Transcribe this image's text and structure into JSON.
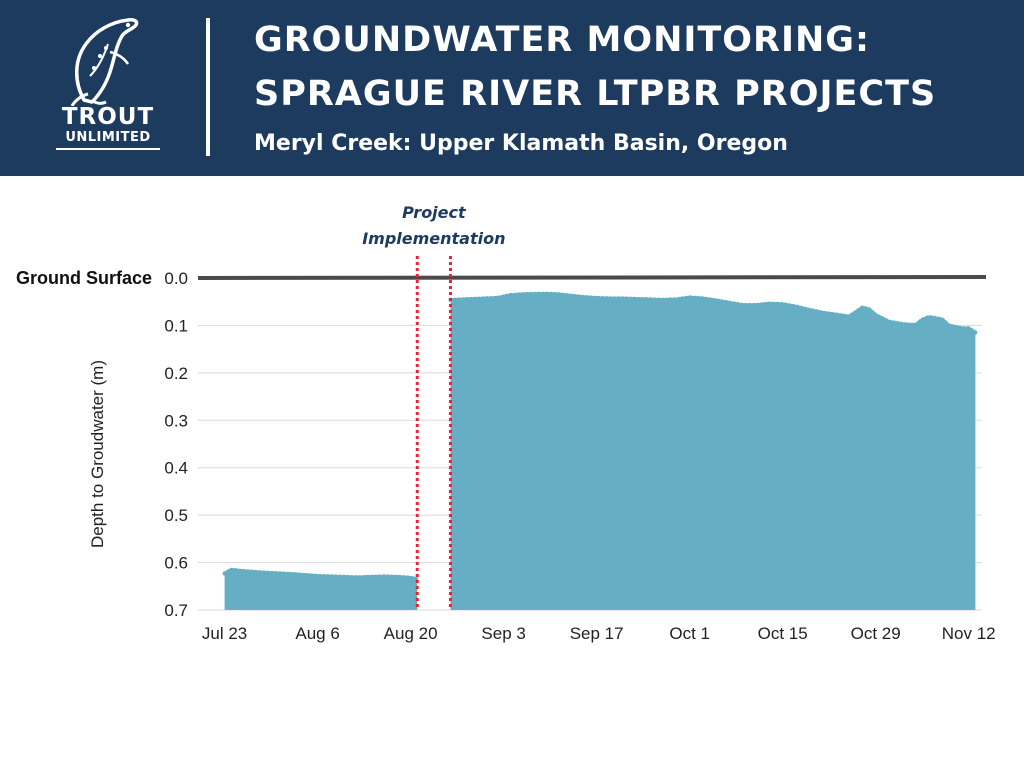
{
  "header": {
    "logo_line1": "TROUT",
    "logo_line2": "UNLIMITED",
    "title_line1": "GROUNDWATER MONITORING:",
    "title_line2": "SPRAGUE RIVER LTPBR PROJECTS",
    "subtitle": "Meryl Creek: Upper Klamath Basin, Oregon"
  },
  "colors": {
    "banner": "#1d3a5f",
    "area_fill": "#65aec3",
    "implementation_line": "#e8252b",
    "ground_line": "#4a4a4a",
    "grid": "#d9d9d9"
  },
  "chart_data": {
    "type": "area",
    "title": "",
    "xlabel": "",
    "ylabel": "Depth to Groudwater (m)",
    "y_inverted": true,
    "ylim": [
      0,
      0.7
    ],
    "yticks": [
      "0.0",
      "0.1",
      "0.2",
      "0.3",
      "0.4",
      "0.5",
      "0.6",
      "0.7"
    ],
    "xlim": [
      "2021-07-19",
      "2021-11-14"
    ],
    "xticks": [
      {
        "date": "2021-07-23",
        "label": "Jul 23"
      },
      {
        "date": "2021-08-06",
        "label": "Aug 6"
      },
      {
        "date": "2021-08-20",
        "label": "Aug 20"
      },
      {
        "date": "2021-09-03",
        "label": "Sep 3"
      },
      {
        "date": "2021-09-17",
        "label": "Sep 17"
      },
      {
        "date": "2021-10-01",
        "label": "Oct 1"
      },
      {
        "date": "2021-10-15",
        "label": "Oct 15"
      },
      {
        "date": "2021-10-29",
        "label": "Oct 29"
      },
      {
        "date": "2021-11-12",
        "label": "Nov 12"
      }
    ],
    "grid": true,
    "reference_line": {
      "label": "Ground Surface",
      "value": 0.0
    },
    "implementation": {
      "label_line1": "Project",
      "label_line2": "Implementation",
      "start": "2021-08-21",
      "end": "2021-08-26"
    },
    "series": [
      {
        "points": [
          [
            "2021-07-23",
            0.623
          ],
          [
            "2021-07-24",
            0.615
          ],
          [
            "2021-07-26",
            0.618
          ],
          [
            "2021-07-28",
            0.62
          ],
          [
            "2021-07-30",
            0.622
          ],
          [
            "2021-08-01",
            0.623
          ],
          [
            "2021-08-03",
            0.625
          ],
          [
            "2021-08-06",
            0.628
          ],
          [
            "2021-08-08",
            0.629
          ],
          [
            "2021-08-10",
            0.63
          ],
          [
            "2021-08-12",
            0.631
          ],
          [
            "2021-08-14",
            0.63
          ],
          [
            "2021-08-16",
            0.629
          ],
          [
            "2021-08-18",
            0.63
          ],
          [
            "2021-08-20",
            0.632
          ],
          [
            "2021-08-21",
            0.635
          ]
        ]
      },
      {
        "points": [
          [
            "2021-08-26",
            0.046
          ],
          [
            "2021-08-28",
            0.045
          ],
          [
            "2021-08-31",
            0.043
          ],
          [
            "2021-09-02",
            0.042
          ],
          [
            "2021-09-04",
            0.036
          ],
          [
            "2021-09-06",
            0.034
          ],
          [
            "2021-09-09",
            0.033
          ],
          [
            "2021-09-11",
            0.034
          ],
          [
            "2021-09-13",
            0.037
          ],
          [
            "2021-09-15",
            0.04
          ],
          [
            "2021-09-17",
            0.042
          ],
          [
            "2021-09-19",
            0.043
          ],
          [
            "2021-09-21",
            0.043
          ],
          [
            "2021-09-23",
            0.044
          ],
          [
            "2021-09-25",
            0.045
          ],
          [
            "2021-09-27",
            0.046
          ],
          [
            "2021-09-29",
            0.045
          ],
          [
            "2021-10-01",
            0.041
          ],
          [
            "2021-10-03",
            0.043
          ],
          [
            "2021-10-05",
            0.047
          ],
          [
            "2021-10-07",
            0.052
          ],
          [
            "2021-10-09",
            0.057
          ],
          [
            "2021-10-11",
            0.057
          ],
          [
            "2021-10-13",
            0.054
          ],
          [
            "2021-10-15",
            0.055
          ],
          [
            "2021-10-17",
            0.06
          ],
          [
            "2021-10-19",
            0.067
          ],
          [
            "2021-10-21",
            0.073
          ],
          [
            "2021-10-23",
            0.077
          ],
          [
            "2021-10-25",
            0.081
          ],
          [
            "2021-10-26",
            0.072
          ],
          [
            "2021-10-27",
            0.062
          ],
          [
            "2021-10-28",
            0.066
          ],
          [
            "2021-10-29",
            0.078
          ],
          [
            "2021-10-31",
            0.092
          ],
          [
            "2021-11-02",
            0.097
          ],
          [
            "2021-11-04",
            0.099
          ],
          [
            "2021-11-05",
            0.088
          ],
          [
            "2021-11-06",
            0.082
          ],
          [
            "2021-11-08",
            0.087
          ],
          [
            "2021-11-09",
            0.1
          ],
          [
            "2021-11-11",
            0.106
          ],
          [
            "2021-11-12",
            0.106
          ],
          [
            "2021-11-13",
            0.115
          ]
        ]
      }
    ]
  }
}
